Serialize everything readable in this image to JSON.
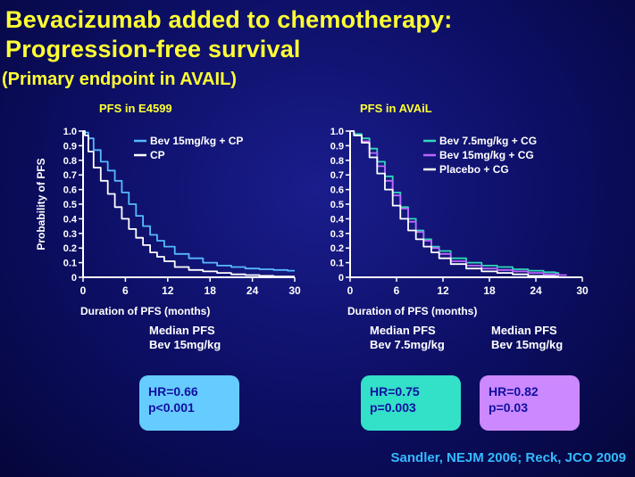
{
  "slide": {
    "title_line1": "Bevacizumab added to chemotherapy:",
    "title_line2": "Progression-free survival",
    "subtitle": "(Primary endpoint in AVAIL)",
    "source": "Sandler, NEJM 2006; Reck, JCO 2009"
  },
  "colors": {
    "title": "#ffff33",
    "bev_cp": "#55b9ff",
    "cp": "#ffffff",
    "bev75_cg": "#2fd9b8",
    "bev15_cg": "#bb66ff",
    "placebo_cg": "#ffffff",
    "box_e4599": "#66ccff",
    "box_bev75": "#33e0c8",
    "box_bev15": "#cc88ff"
  },
  "chart_data": [
    {
      "type": "line",
      "title": "PFS in E4599",
      "xlabel": "Duration of PFS (months)",
      "ylabel": "Probability of PFS",
      "xlim": [
        0,
        30
      ],
      "ylim": [
        0,
        1.0
      ],
      "x_ticks": [
        "0",
        "6",
        "12",
        "18",
        "24",
        "30"
      ],
      "y_ticks": [
        "0",
        "0.1",
        "0.2",
        "0.3",
        "0.4",
        "0.5",
        "0.6",
        "0.7",
        "0.8",
        "0.9",
        "1.0"
      ],
      "legend": "top-right",
      "series": [
        {
          "name": "Bev 15mg/kg + CP",
          "color": "#55b9ff",
          "points": [
            [
              0,
              1.0
            ],
            [
              0.5,
              0.99
            ],
            [
              1,
              0.95
            ],
            [
              2,
              0.87
            ],
            [
              3,
              0.79
            ],
            [
              4,
              0.73
            ],
            [
              5,
              0.66
            ],
            [
              6,
              0.58
            ],
            [
              7,
              0.5
            ],
            [
              8,
              0.42
            ],
            [
              9,
              0.35
            ],
            [
              10,
              0.29
            ],
            [
              11,
              0.25
            ],
            [
              12,
              0.21
            ],
            [
              14,
              0.16
            ],
            [
              16,
              0.13
            ],
            [
              18,
              0.1
            ],
            [
              20,
              0.08
            ],
            [
              22,
              0.07
            ],
            [
              24,
              0.06
            ],
            [
              26,
              0.055
            ],
            [
              28,
              0.05
            ],
            [
              30,
              0.045
            ]
          ]
        },
        {
          "name": "CP",
          "color": "#ffffff",
          "points": [
            [
              0,
              1.0
            ],
            [
              0.5,
              0.97
            ],
            [
              1,
              0.86
            ],
            [
              2,
              0.75
            ],
            [
              3,
              0.66
            ],
            [
              4,
              0.57
            ],
            [
              5,
              0.48
            ],
            [
              6,
              0.4
            ],
            [
              7,
              0.33
            ],
            [
              8,
              0.27
            ],
            [
              9,
              0.22
            ],
            [
              10,
              0.17
            ],
            [
              11,
              0.14
            ],
            [
              12,
              0.11
            ],
            [
              14,
              0.07
            ],
            [
              16,
              0.05
            ],
            [
              18,
              0.04
            ],
            [
              20,
              0.03
            ],
            [
              22,
              0.02
            ],
            [
              24,
              0.015
            ],
            [
              26,
              0.01
            ],
            [
              28,
              0.005
            ],
            [
              30,
              0.005
            ]
          ]
        }
      ]
    },
    {
      "type": "line",
      "title": "PFS in AVAiL",
      "xlabel": "Duration of PFS (months)",
      "ylabel": "",
      "xlim": [
        0,
        30
      ],
      "ylim": [
        0,
        1.0
      ],
      "x_ticks": [
        "0",
        "6",
        "12",
        "18",
        "24",
        "30"
      ],
      "y_ticks": [
        "0",
        "0.1",
        "0.2",
        "0.3",
        "0.4",
        "0.5",
        "0.6",
        "0.7",
        "0.8",
        "0.9",
        "1.0"
      ],
      "legend": "top-right",
      "series": [
        {
          "name": "Bev 7.5mg/kg + CG",
          "color": "#2fd9b8",
          "points": [
            [
              0,
              1.0
            ],
            [
              1,
              0.98
            ],
            [
              2,
              0.95
            ],
            [
              3,
              0.88
            ],
            [
              4,
              0.79
            ],
            [
              5,
              0.69
            ],
            [
              6,
              0.58
            ],
            [
              7,
              0.48
            ],
            [
              8,
              0.4
            ],
            [
              9,
              0.32
            ],
            [
              10,
              0.26
            ],
            [
              11,
              0.21
            ],
            [
              12,
              0.18
            ],
            [
              14,
              0.13
            ],
            [
              16,
              0.1
            ],
            [
              18,
              0.08
            ],
            [
              20,
              0.07
            ],
            [
              22,
              0.055
            ],
            [
              24,
              0.045
            ],
            [
              26,
              0.035
            ],
            [
              27,
              0.03
            ]
          ]
        },
        {
          "name": "Bev 15mg/kg + CG",
          "color": "#bb66ff",
          "points": [
            [
              0,
              1.0
            ],
            [
              1,
              0.97
            ],
            [
              2,
              0.93
            ],
            [
              3,
              0.85
            ],
            [
              4,
              0.76
            ],
            [
              5,
              0.66
            ],
            [
              6,
              0.56
            ],
            [
              7,
              0.47
            ],
            [
              8,
              0.38
            ],
            [
              9,
              0.31
            ],
            [
              10,
              0.25
            ],
            [
              11,
              0.2
            ],
            [
              12,
              0.16
            ],
            [
              14,
              0.11
            ],
            [
              16,
              0.08
            ],
            [
              18,
              0.06
            ],
            [
              20,
              0.05
            ],
            [
              22,
              0.04
            ],
            [
              24,
              0.03
            ],
            [
              26,
              0.02
            ],
            [
              28,
              0.015
            ]
          ]
        },
        {
          "name": "Placebo + CG",
          "color": "#ffffff",
          "points": [
            [
              0,
              1.0
            ],
            [
              1,
              0.97
            ],
            [
              2,
              0.92
            ],
            [
              3,
              0.82
            ],
            [
              4,
              0.71
            ],
            [
              5,
              0.6
            ],
            [
              6,
              0.49
            ],
            [
              7,
              0.4
            ],
            [
              8,
              0.32
            ],
            [
              9,
              0.26
            ],
            [
              10,
              0.21
            ],
            [
              11,
              0.17
            ],
            [
              12,
              0.13
            ],
            [
              14,
              0.09
            ],
            [
              16,
              0.06
            ],
            [
              18,
              0.04
            ],
            [
              20,
              0.03
            ],
            [
              22,
              0.02
            ],
            [
              24,
              0.01
            ],
            [
              26,
              0.008
            ],
            [
              27,
              0.006
            ]
          ]
        }
      ]
    }
  ],
  "medians": {
    "e4599": {
      "line1": "Median PFS",
      "line2": "Bev 15mg/kg"
    },
    "avail_75": {
      "line1": "Median PFS",
      "line2": "Bev 7.5mg/kg"
    },
    "avail_15": {
      "line1": "Median PFS",
      "line2": "Bev 15mg/kg"
    }
  },
  "hr_boxes": {
    "e4599": {
      "hr": "HR=0.66",
      "p": "p<0.001"
    },
    "avail_75": {
      "hr": "HR=0.75",
      "p": "p=0.003"
    },
    "avail_15": {
      "hr": "HR=0.82",
      "p": "p=0.03"
    }
  }
}
